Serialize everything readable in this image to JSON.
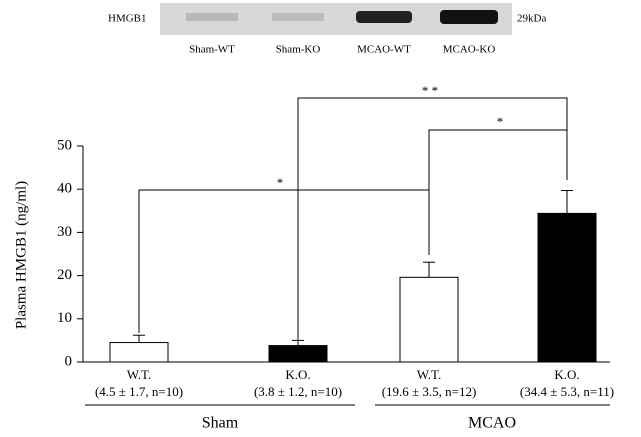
{
  "blot": {
    "label": "HMGB1",
    "size": "29kDa",
    "lanes": [
      "Sham-WT",
      "Sham-KO",
      "MCAO-WT",
      "MCAO-KO"
    ]
  },
  "chart_data": {
    "type": "bar",
    "y_label": "Plasma HMGB1 (ng/ml)",
    "categories": [
      "W.T.",
      "K.O.",
      "W.T.",
      "K.O."
    ],
    "category_notes": [
      "(4.5 ± 1.7, n=10)",
      "(3.8 ± 1.2, n=10)",
      "(19.6 ± 3.5, n=12)",
      "(34.4 ± 5.3, n=11)"
    ],
    "groups": [
      "Sham",
      "MCAO"
    ],
    "values": [
      4.5,
      3.8,
      19.6,
      34.4
    ],
    "errors": [
      1.7,
      1.2,
      3.5,
      5.3
    ],
    "colors": [
      "#ffffff",
      "#000000",
      "#ffffff",
      "#000000"
    ],
    "ylim": [
      0,
      50
    ],
    "yticks": [
      0,
      10,
      20,
      30,
      40,
      50
    ],
    "annotations": [
      "*",
      "* *",
      "*"
    ]
  }
}
